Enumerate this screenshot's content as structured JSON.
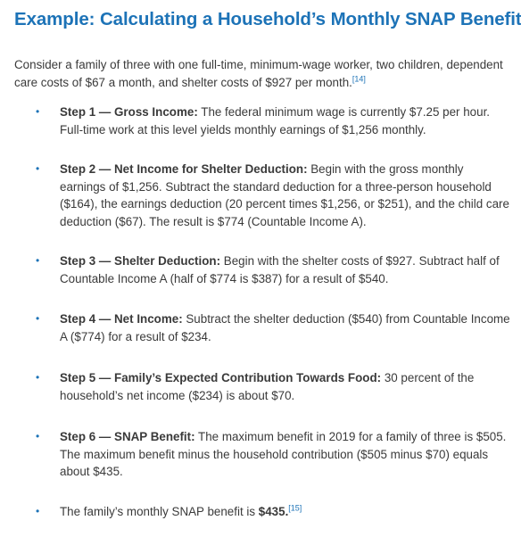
{
  "title": "Example: Calculating a Household’s Monthly SNAP Benefits",
  "intro": {
    "text": "Consider a family of three with one full-time, minimum-wage worker, two children, dependent care costs of $67 a month, and shelter costs of $927 per month.",
    "footnote": "[14]"
  },
  "bullet_symbol": "•",
  "steps": [
    {
      "label": "Step 1 — Gross Income:",
      "text": " The federal minimum wage is currently $7.25 per hour. Full-time work at this level yields monthly earnings of $1,256 monthly."
    },
    {
      "label": "Step 2 — Net Income for Shelter Deduction:",
      "text": " Begin with the gross monthly earnings of $1,256. Subtract the standard deduction for a three-person household ($164), the earnings deduction (20 percent times $1,256, or $251), and the child care deduction ($67). The result is $774 (Countable Income A)."
    },
    {
      "label": "Step 3 — Shelter Deduction:",
      "text": " Begin with the shelter costs of $927. Subtract half of Countable Income A (half of $774 is $387) for a result of $540."
    },
    {
      "label": "Step 4 — Net Income:",
      "text": " Subtract the shelter deduction ($540) from Countable Income A ($774) for a result of $234."
    },
    {
      "label": "Step 5 — Family’s Expected Contribution Towards Food:",
      "text": " 30 percent of the household’s net income ($234) is about $70."
    },
    {
      "label": "Step 6 — SNAP Benefit:",
      "text": " The maximum benefit in 2019 for a family of three is $505. The maximum benefit minus the household contribution ($505 minus $70) equals about $435."
    }
  ],
  "final": {
    "text": "The family’s monthly SNAP benefit is ",
    "amount": "$435.",
    "footnote": "[15]"
  },
  "colors": {
    "heading": "#1d73b7",
    "body_text": "#3a3a3a",
    "footnote": "#1d73b7",
    "bullet": "#1d73b7",
    "background": "#ffffff"
  }
}
